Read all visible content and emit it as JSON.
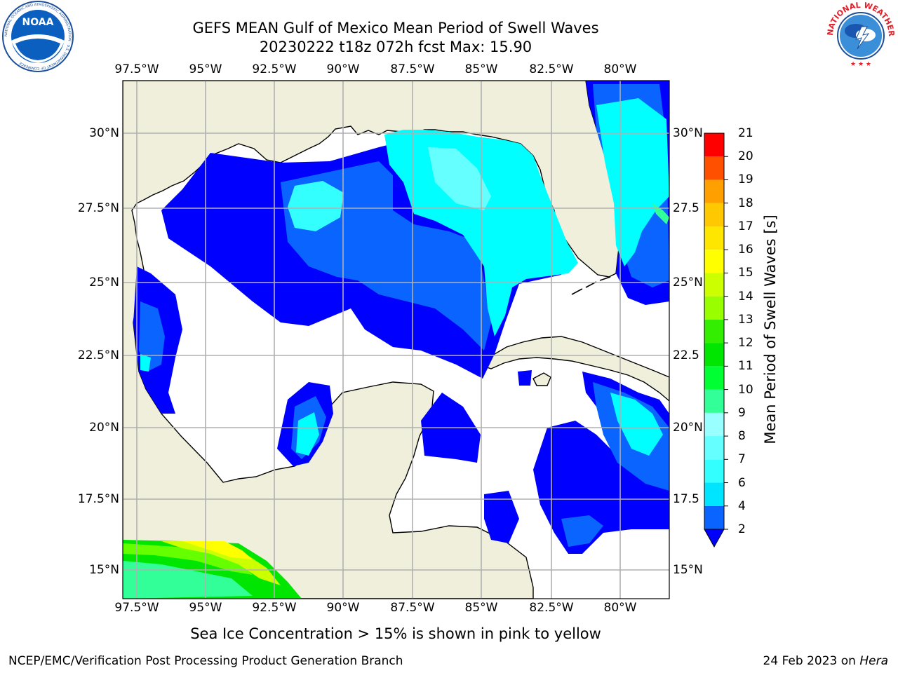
{
  "header": {
    "title_line1": "GEFS MEAN Gulf of Mexico Mean Period of Swell Waves",
    "title_line2": "20230222 t18z 072h fcst   Max: 15.90"
  },
  "logos": {
    "left": {
      "text": "NOAA",
      "ring": "NATIONAL OCEANIC AND ATMOSPHERIC ADMINISTRATION · U.S. DEPARTMENT OF COMMERCE"
    },
    "right": {
      "text": "NATIONAL WEATHER SERVICE"
    }
  },
  "map": {
    "lon_ticks": [
      "97.5°W",
      "95°W",
      "92.5°W",
      "90°W",
      "87.5°W",
      "85°W",
      "82.5°W",
      "80°W"
    ],
    "lat_ticks_left": [
      "30°N",
      "27.5°N",
      "25°N",
      "22.5°N",
      "20°N",
      "17.5°N",
      "15°N"
    ],
    "lat_ticks_right": [
      "30°N",
      "27.5",
      "25°N",
      "22.5",
      "20°N",
      "17.5",
      "15°N"
    ],
    "colors": {
      "land": "#efefdc",
      "ocean_no_data": "#ffffff",
      "grid": "#b0b0b0"
    }
  },
  "colorbar": {
    "label": "Mean Period of Swell Waves [s]",
    "ticks": [
      "21",
      "20",
      "19",
      "18",
      "17",
      "16",
      "15",
      "14",
      "13",
      "12",
      "11",
      "10",
      "9",
      "8",
      "7",
      "6",
      "4",
      "2"
    ],
    "colors": [
      "#0000ff",
      "#0a64ff",
      "#00e5ff",
      "#00ffff",
      "#33ffff",
      "#66ffff",
      "#99ffff",
      "#33ff99",
      "#00ff33",
      "#00e600",
      "#33ee00",
      "#66ff00",
      "#ccff00",
      "#ffff00",
      "#ffe600",
      "#ffc800",
      "#ffa000",
      "#ff7800",
      "#ff5000",
      "#ff2800",
      "#ff0000"
    ]
  },
  "subcaption": "Sea Ice Concentration > 15% is shown in pink to yellow",
  "footer": {
    "left": "NCEP/EMC/Verification Post Processing Product Generation Branch",
    "right_prefix": "24 Feb 2023 on ",
    "right_host": "Hera"
  }
}
